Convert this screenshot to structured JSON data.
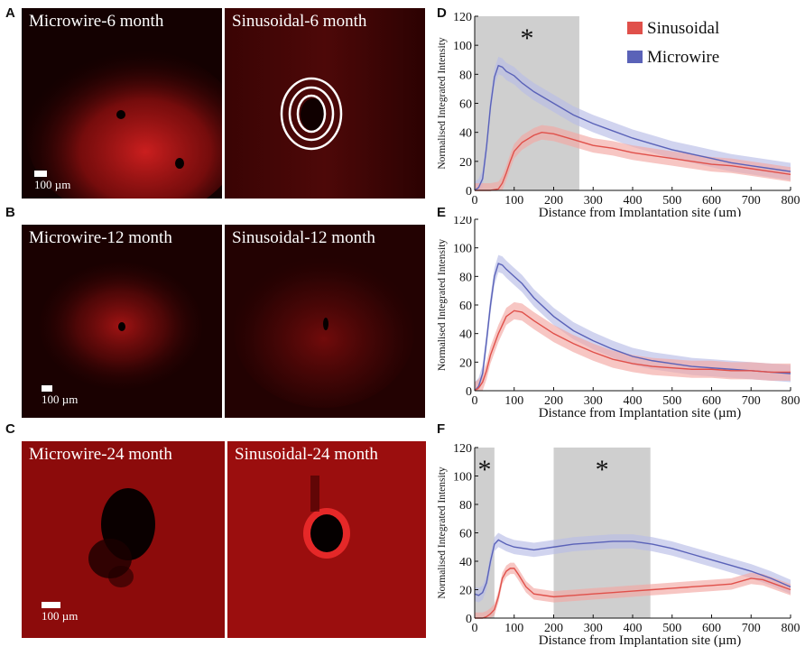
{
  "figure": {
    "panel_labels": [
      "A",
      "B",
      "C",
      "D",
      "E",
      "F"
    ],
    "scale_bar_label": "100  µm",
    "scale_bar_label_c": "100 µm",
    "micrographs": {
      "a_left": "Microwire-6 month",
      "a_right": "Sinusoidal-6 month",
      "b_left": "Microwire-12 month",
      "b_right": "Sinusoidal-12 month",
      "c_left": "Microwire-24 month",
      "c_right": "Sinusoidal-24 month"
    },
    "colors": {
      "sinusoidal": "#e0504a",
      "sinusoidal_band": "#f3a8a3",
      "microwire": "#5a62b8",
      "microwire_band": "#b8bde6",
      "shade": "#cfcfcf",
      "tissue": "#c81818"
    }
  },
  "chart_data": [
    {
      "panel": "D",
      "type": "line",
      "xlabel": "Distance from Implantation site (µm)",
      "ylabel": "Normalised Integrated Intensity",
      "xlim": [
        0,
        800
      ],
      "ylim": [
        0,
        120
      ],
      "xticks": [
        0,
        100,
        200,
        300,
        400,
        500,
        600,
        700,
        800
      ],
      "yticks": [
        0,
        20,
        40,
        60,
        80,
        100,
        120
      ],
      "legend": {
        "position": "top-right",
        "entries": [
          "Sinusoidal",
          "Microwire"
        ]
      },
      "shaded_regions": [
        {
          "x": [
            0,
            265
          ],
          "label": "*"
        }
      ],
      "series": [
        {
          "name": "Microwire",
          "band": 6,
          "x": [
            0,
            10,
            20,
            30,
            40,
            50,
            60,
            70,
            80,
            100,
            120,
            150,
            200,
            250,
            300,
            350,
            400,
            450,
            500,
            550,
            600,
            650,
            700,
            750,
            800
          ],
          "y": [
            0,
            2,
            8,
            30,
            58,
            78,
            86,
            85,
            82,
            79,
            74,
            68,
            60,
            52,
            46,
            41,
            36,
            32,
            28,
            25,
            22,
            19,
            17,
            15,
            13
          ]
        },
        {
          "name": "Sinusoidal",
          "band": 5,
          "x": [
            0,
            40,
            60,
            70,
            80,
            90,
            100,
            120,
            150,
            170,
            200,
            250,
            300,
            350,
            400,
            450,
            500,
            550,
            600,
            650,
            700,
            750,
            800
          ],
          "y": [
            0,
            0,
            1,
            5,
            12,
            20,
            27,
            33,
            38,
            40,
            39,
            35,
            31,
            29,
            26,
            24,
            22,
            20,
            18,
            17,
            15,
            13,
            11
          ]
        }
      ]
    },
    {
      "panel": "E",
      "type": "line",
      "xlabel": "Distance from Implantation site (µm)",
      "ylabel": "Normalised Integrated Intensity",
      "xlim": [
        0,
        800
      ],
      "ylim": [
        0,
        120
      ],
      "xticks": [
        0,
        100,
        200,
        300,
        400,
        500,
        600,
        700,
        800
      ],
      "yticks": [
        0,
        20,
        40,
        60,
        80,
        100,
        120
      ],
      "shaded_regions": [],
      "series": [
        {
          "name": "Microwire",
          "band": 6,
          "x": [
            0,
            10,
            20,
            30,
            40,
            50,
            60,
            70,
            80,
            100,
            120,
            150,
            200,
            250,
            300,
            350,
            400,
            450,
            500,
            550,
            600,
            650,
            700,
            750,
            800
          ],
          "y": [
            0,
            3,
            12,
            35,
            60,
            80,
            89,
            88,
            85,
            80,
            75,
            65,
            52,
            42,
            35,
            29,
            24,
            21,
            19,
            17,
            16,
            15,
            14,
            13,
            12
          ]
        },
        {
          "name": "Sinusoidal",
          "band": 6,
          "x": [
            0,
            10,
            20,
            30,
            40,
            60,
            80,
            100,
            120,
            150,
            200,
            250,
            300,
            350,
            400,
            450,
            500,
            550,
            600,
            650,
            700,
            750,
            800
          ],
          "y": [
            0,
            2,
            6,
            14,
            25,
            40,
            52,
            56,
            55,
            49,
            40,
            33,
            27,
            22,
            19,
            17,
            16,
            15,
            15,
            14,
            14,
            13,
            13
          ]
        }
      ]
    },
    {
      "panel": "F",
      "type": "line",
      "xlabel": "Distance from Implantation site (µm)",
      "ylabel": "Normalised Integrated Intensity",
      "xlim": [
        0,
        800
      ],
      "ylim": [
        0,
        120
      ],
      "xticks": [
        0,
        100,
        200,
        300,
        400,
        500,
        600,
        700,
        800
      ],
      "yticks": [
        0,
        20,
        40,
        60,
        80,
        100,
        120
      ],
      "shaded_regions": [
        {
          "x": [
            0,
            50
          ],
          "label": "*"
        },
        {
          "x": [
            200,
            445
          ],
          "label": "*"
        }
      ],
      "series": [
        {
          "name": "Microwire",
          "band": 5,
          "x": [
            0,
            10,
            20,
            30,
            40,
            50,
            60,
            80,
            100,
            150,
            200,
            250,
            300,
            350,
            400,
            450,
            500,
            550,
            600,
            650,
            700,
            750,
            800
          ],
          "y": [
            17,
            16,
            18,
            25,
            40,
            52,
            55,
            52,
            50,
            48,
            50,
            52,
            53,
            54,
            54,
            52,
            49,
            45,
            41,
            37,
            33,
            28,
            22
          ]
        },
        {
          "name": "Sinusoidal",
          "band": 4,
          "x": [
            0,
            20,
            30,
            40,
            50,
            60,
            70,
            80,
            90,
            100,
            110,
            130,
            150,
            200,
            250,
            300,
            350,
            400,
            450,
            500,
            550,
            600,
            650,
            700,
            730,
            760,
            800
          ],
          "y": [
            0,
            0,
            1,
            3,
            6,
            15,
            28,
            33,
            35,
            35,
            31,
            22,
            17,
            15,
            16,
            17,
            18,
            19,
            20,
            21,
            22,
            23,
            24,
            28,
            27,
            24,
            20
          ]
        }
      ]
    }
  ]
}
